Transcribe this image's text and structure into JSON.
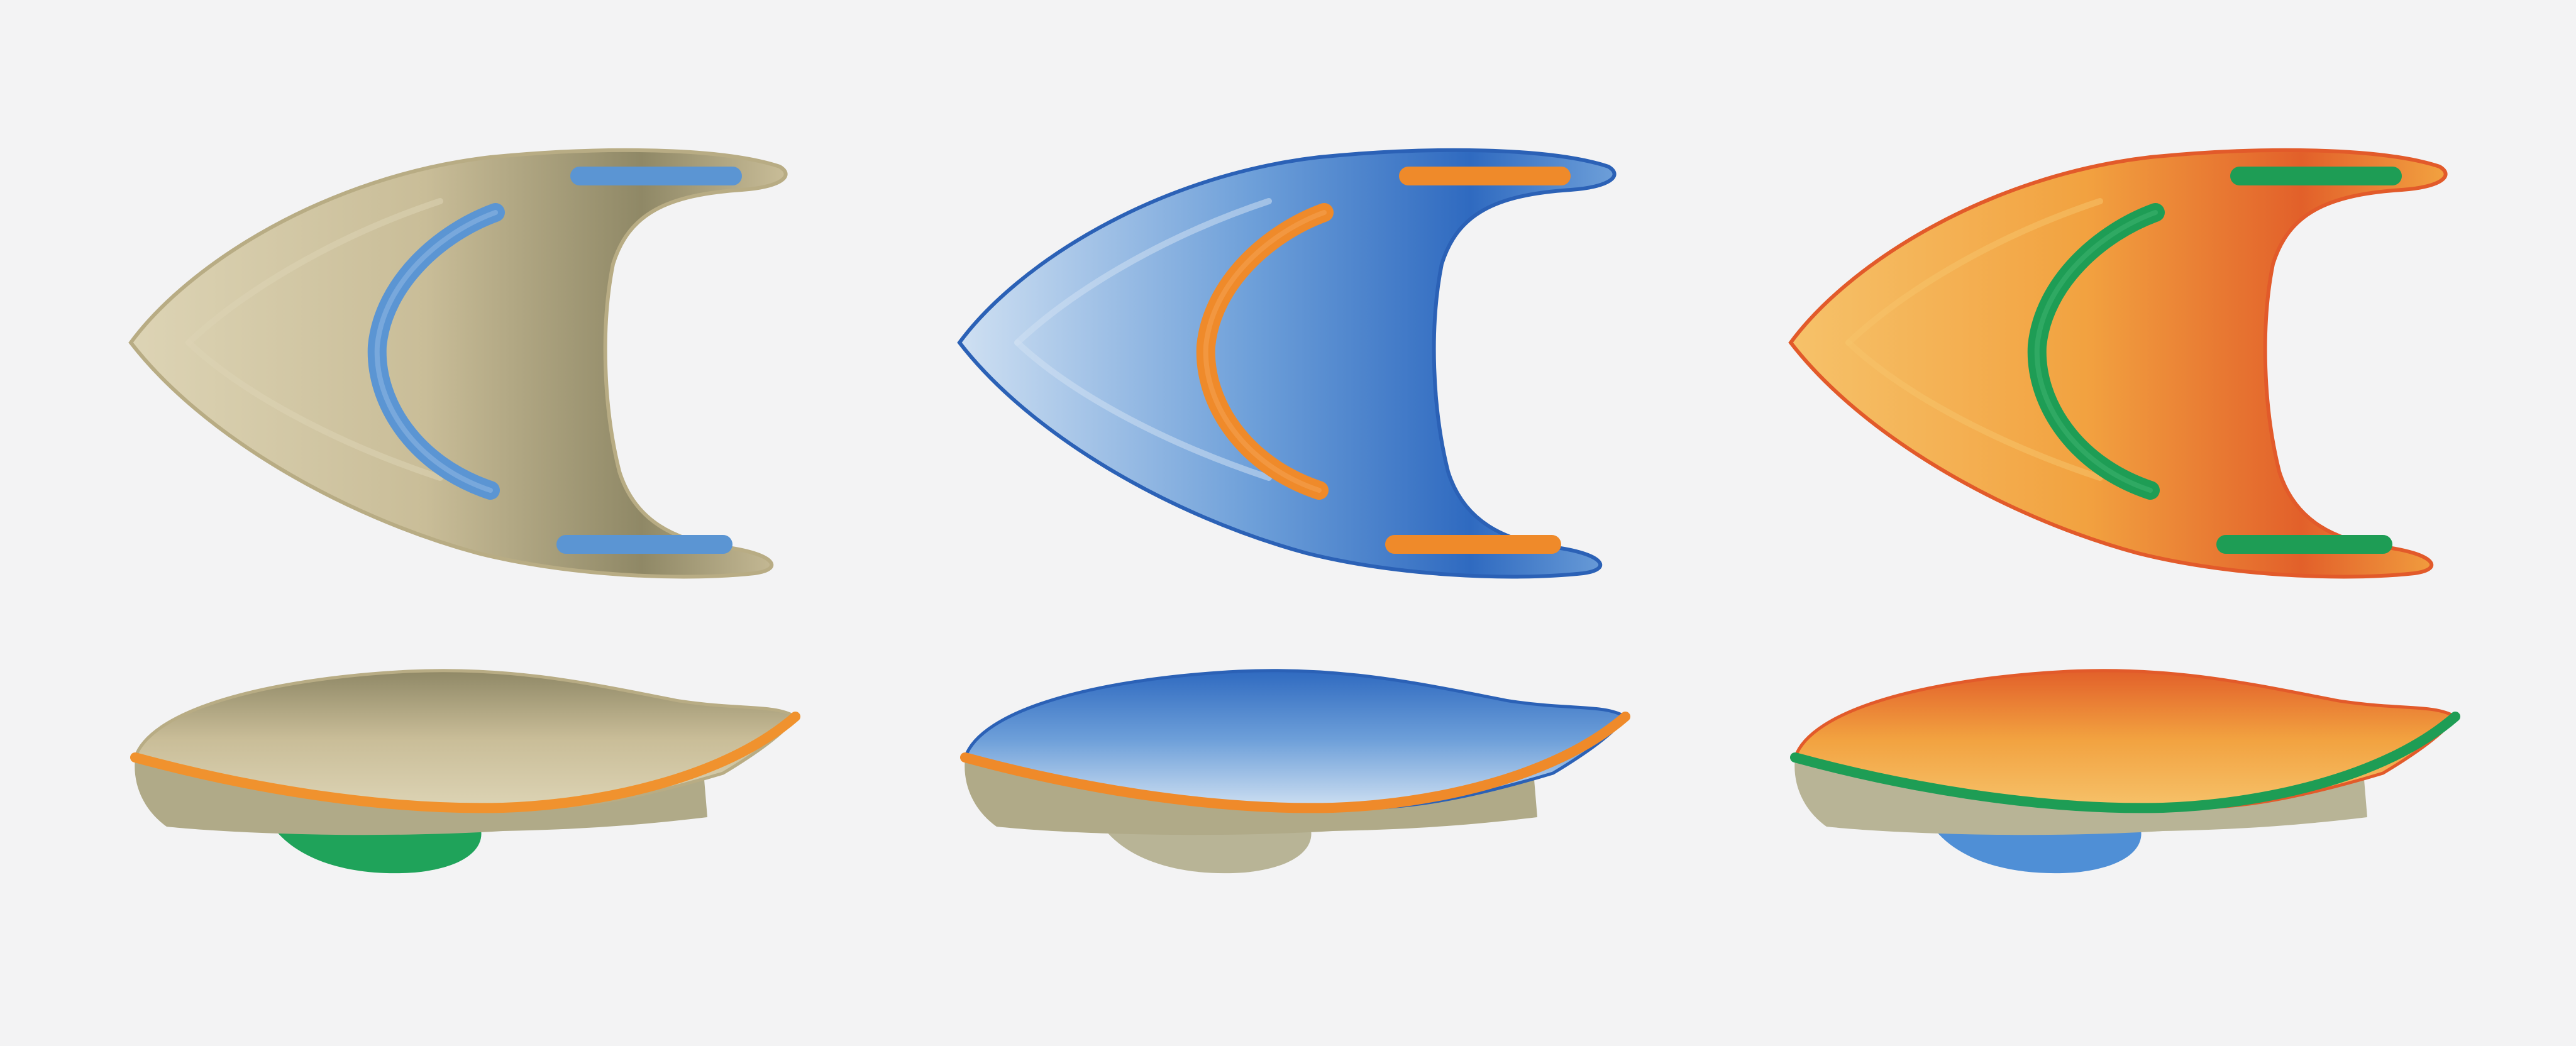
{
  "illustration": {
    "background": "#f3f3f4",
    "variants": [
      {
        "id": "tan",
        "body_light": "#ddd4b5",
        "body_mid": "#c9bd98",
        "body_dark": "#8f8866",
        "stripe": "#5b95d3",
        "stripe_light": "#8cb6e3",
        "edge": "#b8ac84",
        "side_band": "#f0922e",
        "side_foot": "#1fa35a",
        "side_rim": "#b0aa88"
      },
      {
        "id": "blue",
        "body_light": "#cfe0f2",
        "body_mid": "#6d9fd9",
        "body_dark": "#2f6ac0",
        "stripe": "#ef8a2a",
        "stripe_light": "#f4a050",
        "edge": "#2b61b6",
        "side_band": "#ef8a2a",
        "side_foot": "#b8b496",
        "side_rim": "#b0aa88"
      },
      {
        "id": "orange",
        "body_light": "#f6c26a",
        "body_mid": "#f2a240",
        "body_dark": "#e2602a",
        "stripe": "#1e9d55",
        "stripe_light": "#3bb06c",
        "edge": "#e25a2a",
        "side_band": "#1e9d55",
        "side_foot": "#4f8fd6",
        "side_rim": "#b8b496"
      }
    ]
  }
}
